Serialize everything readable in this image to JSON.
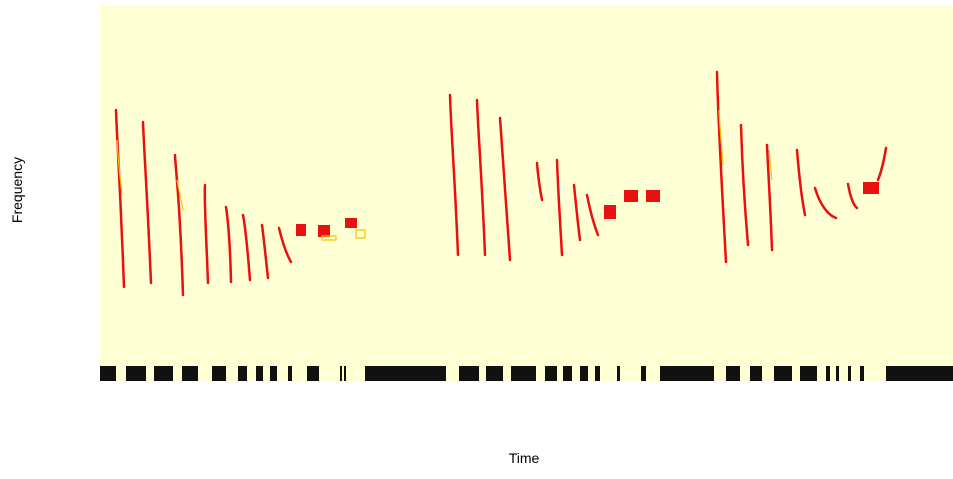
{
  "chart_data": {
    "type": "spectrogram",
    "xlabel": "Time",
    "ylabel": "Frequency"
  }
}
